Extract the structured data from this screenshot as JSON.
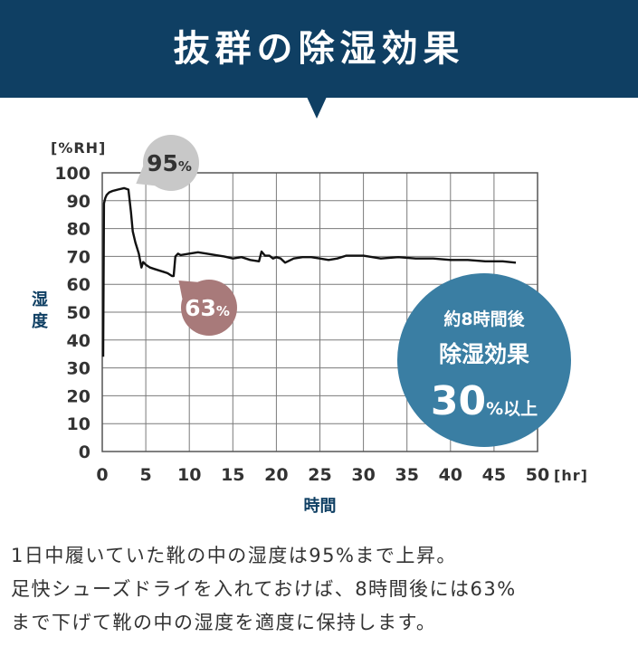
{
  "header": {
    "title": "抜群の除湿効果"
  },
  "chart_data": {
    "type": "line",
    "title": "",
    "xlabel": "時間",
    "ylabel": "湿度",
    "x_unit": "[hr]",
    "y_unit": "[%RH]",
    "xlim": [
      0,
      50
    ],
    "ylim": [
      0,
      100
    ],
    "x_ticks": [
      0,
      5,
      10,
      15,
      20,
      25,
      30,
      35,
      40,
      45,
      50
    ],
    "y_ticks": [
      0,
      10,
      20,
      30,
      40,
      50,
      60,
      70,
      80,
      90,
      100
    ],
    "grid": true,
    "series": [
      {
        "name": "",
        "color": "#111111",
        "x": [
          0.1,
          0.2,
          0.35,
          0.5,
          0.8,
          1.2,
          1.8,
          2.5,
          3.0,
          3.3,
          3.5,
          3.8,
          4.2,
          4.5,
          4.7,
          5.0,
          5.5,
          6.0,
          6.5,
          7.0,
          7.5,
          8.0,
          8.2,
          8.4,
          8.7,
          9.0,
          10.0,
          11.0,
          12.0,
          13.0,
          14.0,
          15.0,
          16.0,
          17.0,
          18.0,
          18.3,
          18.7,
          19.2,
          19.6,
          20.0,
          20.5,
          21.0,
          22.0,
          23.0,
          24.0,
          25.0,
          26.0,
          27.0,
          28.0,
          29.0,
          30.0,
          32.0,
          34.0,
          36.0,
          38.0,
          40.0,
          42.0,
          44.0,
          46.0,
          47.5
        ],
        "y": [
          34,
          89,
          91,
          92,
          93,
          93.5,
          94,
          94.5,
          94,
          86,
          79,
          75,
          71,
          66,
          68,
          67,
          66,
          65.5,
          65,
          64.5,
          64,
          63,
          63,
          70,
          71,
          70.5,
          71,
          71.5,
          71,
          70.5,
          70,
          69.5,
          69.5,
          69,
          68,
          72,
          70,
          70.5,
          69,
          70,
          69,
          68,
          69,
          70,
          69.5,
          69.5,
          68.5,
          69.5,
          70,
          70.5,
          70,
          69.5,
          69.5,
          69.5,
          69,
          69,
          68.5,
          68.5,
          68,
          68
        ]
      }
    ],
    "annotations": [
      {
        "id": "peak",
        "x": 3.0,
        "y": 94.5,
        "value": "95",
        "unit": "%",
        "color": "#c8c8c8",
        "text_color": "#333333"
      },
      {
        "id": "low",
        "x": 8.2,
        "y": 63,
        "value": "63",
        "unit": "%",
        "color": "#a87a7a",
        "text_color": "#ffffff"
      }
    ],
    "badge": {
      "line1": "約8時間後",
      "line2": "除湿効果",
      "value": "30",
      "unit": "%",
      "suffix": "以上",
      "color": "#3a7ea3"
    }
  },
  "caption": {
    "lines": [
      "1日中履いていた靴の中の湿度は95%まで上昇。",
      "足快シューズドライを入れておけば、8時間後には63%",
      "まで下げて靴の中の湿度を適度に保持します。"
    ]
  }
}
